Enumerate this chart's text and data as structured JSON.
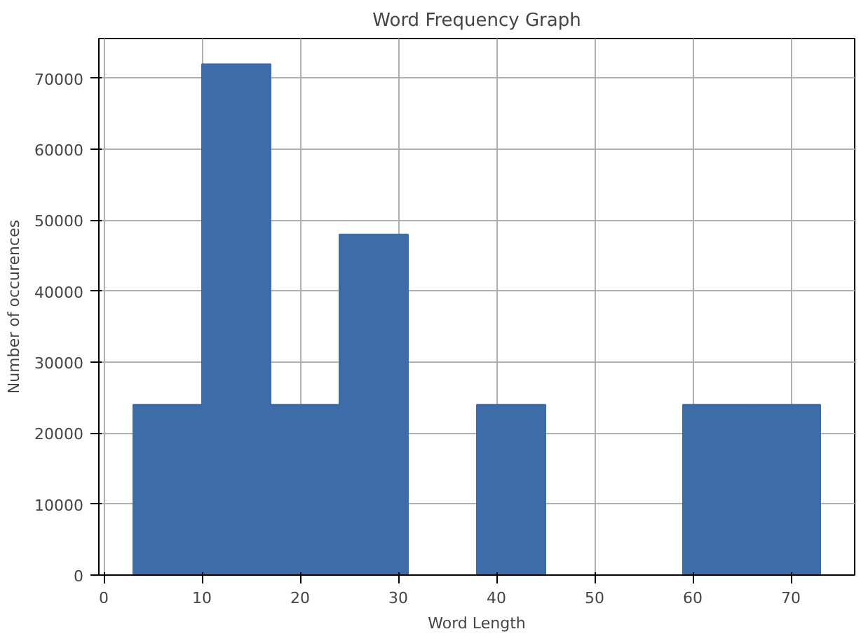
{
  "chart_data": {
    "type": "histogram",
    "title": "Word Frequency Graph",
    "xlabel": "Word Length",
    "ylabel": "Number of occurences",
    "bins": [
      3,
      10,
      17,
      24,
      31,
      38,
      45,
      52,
      59,
      66,
      73
    ],
    "values": [
      24000,
      72000,
      24000,
      48000,
      0,
      24000,
      0,
      0,
      24000,
      24000
    ],
    "color": "#3d6ca8",
    "xlim": [
      -0.5,
      76.5
    ],
    "xticks": [
      0,
      10,
      20,
      30,
      40,
      50,
      60,
      70
    ],
    "ylim": [
      0,
      75600
    ],
    "yticks": [
      0,
      10000,
      20000,
      30000,
      40000,
      50000,
      60000,
      70000
    ],
    "grid": true
  }
}
